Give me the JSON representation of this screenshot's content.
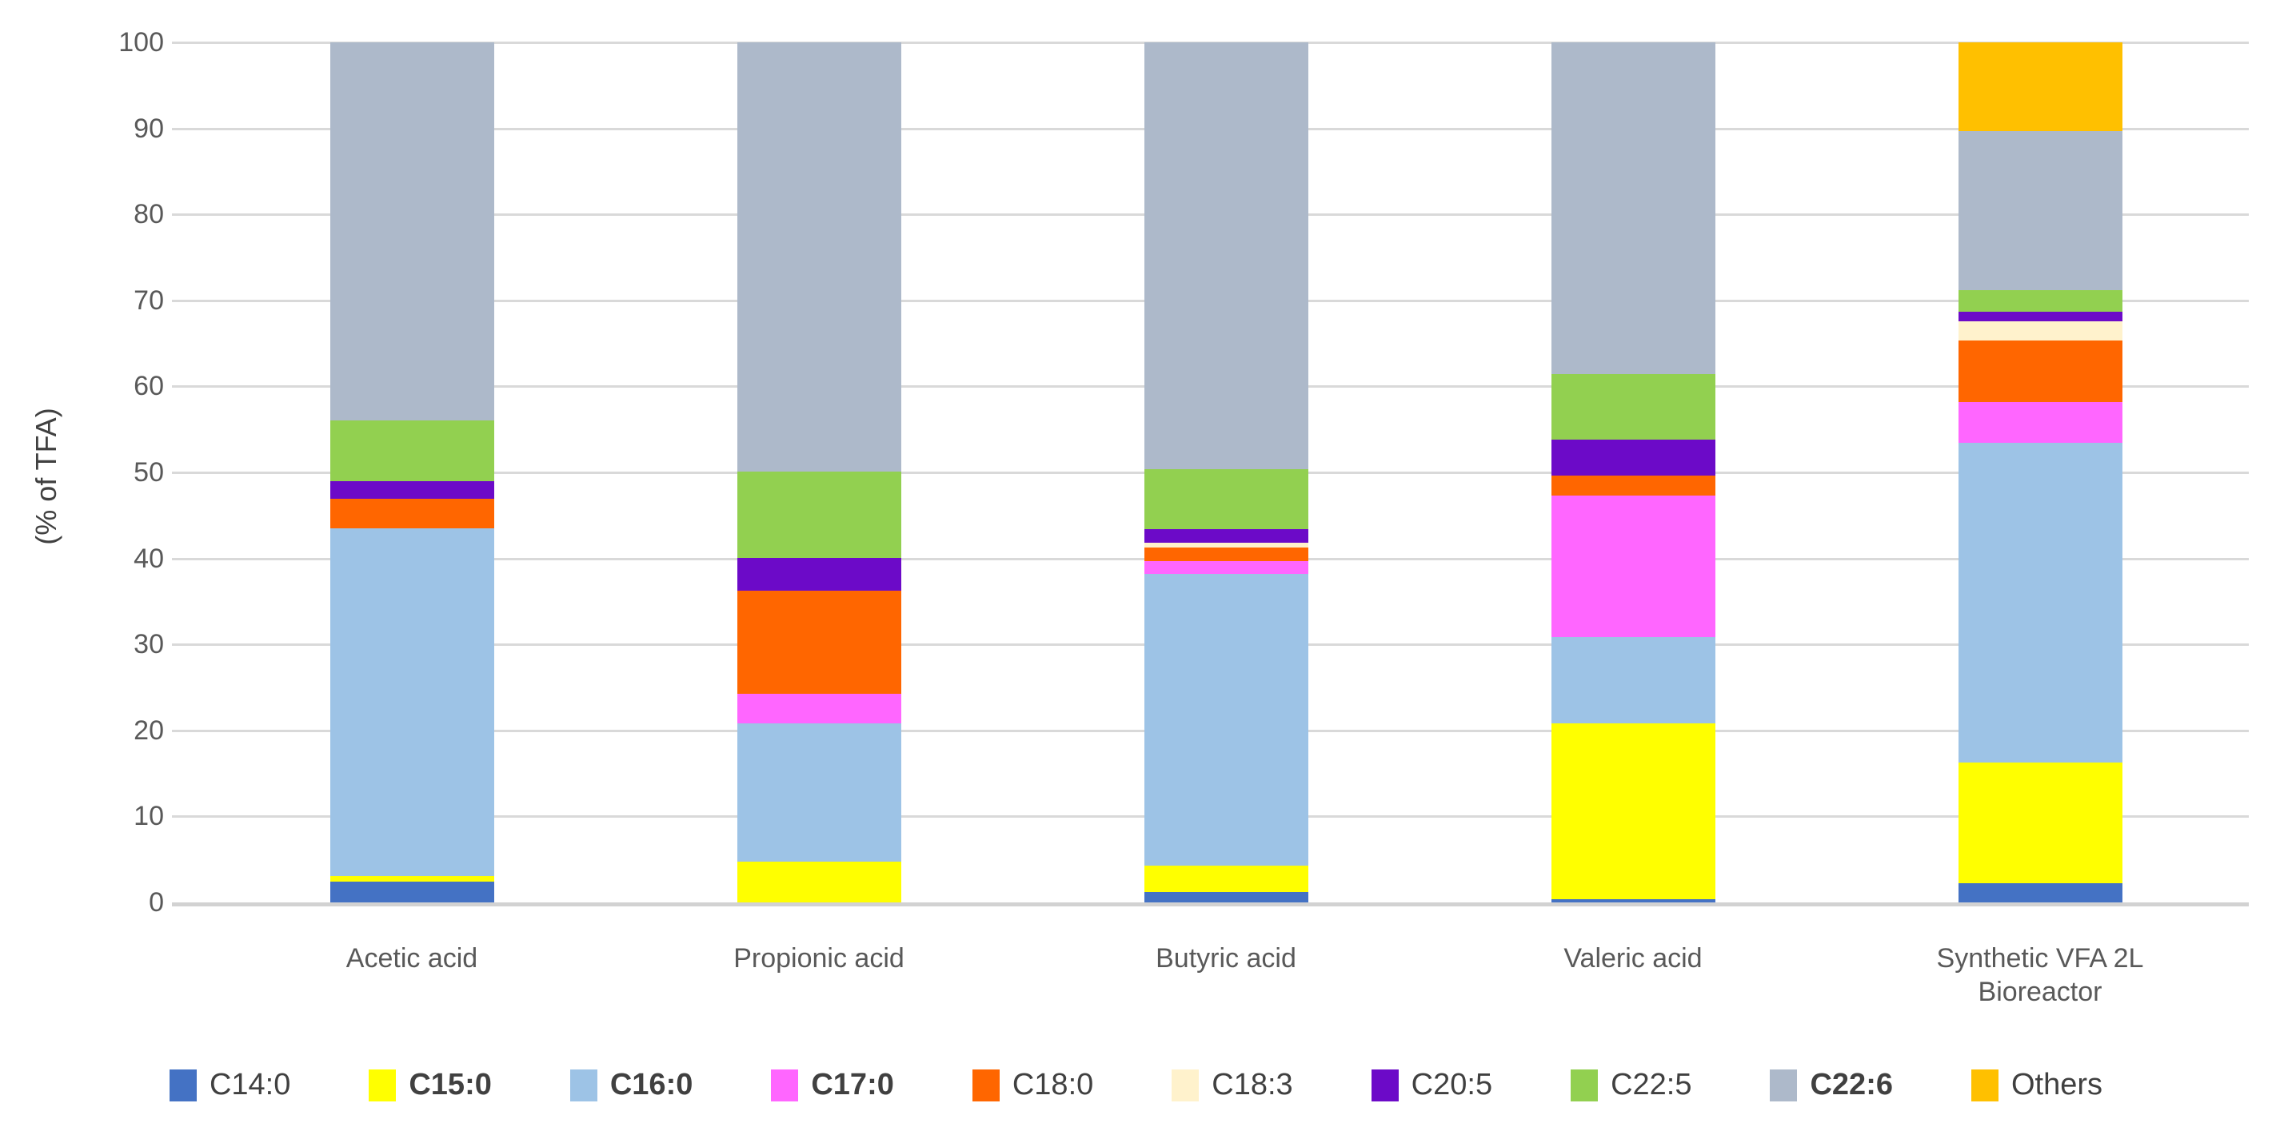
{
  "y_axis": {
    "title": "(% of TFA)",
    "tick_labels": [
      "0",
      "10",
      "20",
      "30",
      "40",
      "50",
      "60",
      "70",
      "80",
      "90",
      "100"
    ],
    "min": 0,
    "max": 100
  },
  "chart_data": {
    "type": "bar",
    "stacked": true,
    "orientation": "vertical",
    "grid": true,
    "legend_position": "bottom",
    "ylim": [
      0,
      100
    ],
    "ylabel": "(% of TFA)",
    "categories": [
      "Acetic acid",
      "Propionic acid",
      "Butyric acid",
      "Valeric acid",
      "Synthetic VFA 2L Bioreactor"
    ],
    "series": [
      {
        "name": "C14:0",
        "color": "#4472C4",
        "bold": false,
        "values": [
          2.4,
          0,
          1.2,
          0.4,
          2.2
        ]
      },
      {
        "name": "C15:0",
        "color": "#FFFF00",
        "bold": true,
        "values": [
          0.7,
          4.7,
          3.1,
          20.4,
          14.1
        ]
      },
      {
        "name": "C16:0",
        "color": "#9DC3E6",
        "bold": true,
        "values": [
          40.4,
          16.1,
          33.9,
          10.1,
          37.1
        ]
      },
      {
        "name": "C17:0",
        "color": "#FF66FF",
        "bold": true,
        "values": [
          0,
          3.5,
          1.5,
          16.4,
          4.8
        ]
      },
      {
        "name": "C18:0",
        "color": "#FF6600",
        "bold": false,
        "values": [
          3.4,
          11.9,
          1.6,
          2.3,
          7.1
        ]
      },
      {
        "name": "C18:3",
        "color": "#FFF2CC",
        "bold": false,
        "values": [
          0,
          0,
          0.5,
          0,
          2.3
        ]
      },
      {
        "name": "C20:5",
        "color": "#6C0AC8",
        "bold": false,
        "values": [
          2.1,
          3.9,
          1.6,
          4.2,
          1.1
        ]
      },
      {
        "name": "C22:5",
        "color": "#92D050",
        "bold": false,
        "values": [
          7.0,
          10.0,
          7.0,
          7.6,
          2.5
        ]
      },
      {
        "name": "C22:6",
        "color": "#ADB9CA",
        "bold": true,
        "values": [
          44.0,
          49.9,
          49.6,
          38.6,
          18.5
        ]
      },
      {
        "name": "Others",
        "color": "#FFC000",
        "bold": false,
        "values": [
          0,
          0,
          0,
          0,
          10.3
        ]
      }
    ]
  }
}
